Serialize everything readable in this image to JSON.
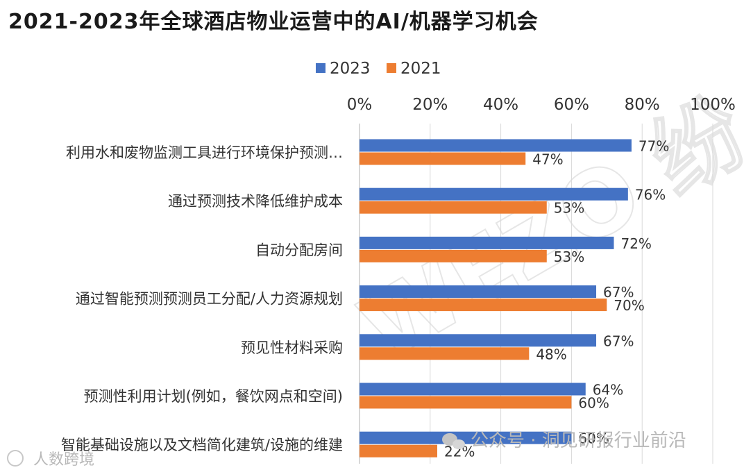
{
  "chart_data": {
    "type": "bar",
    "orientation": "horizontal",
    "title": "2021-2023年全球酒店物业运营中的AI/机器学习机会",
    "categories": [
      "利用水和废物监测工具进行环境保护预测…",
      "通过预测技术降低维护成本",
      "自动分配房间",
      "通过智能预测预测员工分配/人力资源规划",
      "预见性材料采购",
      "预测性利用计划(例如，餐饮网点和空间)",
      "智能基础设施以及文档简化建筑/设施的维建"
    ],
    "series": [
      {
        "name": "2023",
        "color": "#4472C4",
        "values": [
          77,
          76,
          72,
          67,
          67,
          64,
          60
        ],
        "labels": [
          "77%",
          "76%",
          "72%",
          "67%",
          "67%",
          "64%",
          "60%"
        ]
      },
      {
        "name": "2021",
        "color": "#ED7D31",
        "values": [
          47,
          53,
          53,
          70,
          48,
          60,
          22
        ],
        "labels": [
          "47%",
          "53%",
          "53%",
          "70%",
          "48%",
          "60%",
          "22%"
        ]
      }
    ],
    "xlim": [
      0,
      100
    ],
    "xticks": [
      "0%",
      "20%",
      "40%",
      "60%",
      "80%",
      "100%"
    ],
    "xtick_values": [
      0,
      20,
      40,
      60,
      80,
      100
    ],
    "axis_position": "top",
    "legend": "top",
    "grid": true
  },
  "watermarks": {
    "big": "WEZO 纷",
    "source": "公众号 · 洞见研报行业前沿",
    "corner": "人数跨境"
  }
}
